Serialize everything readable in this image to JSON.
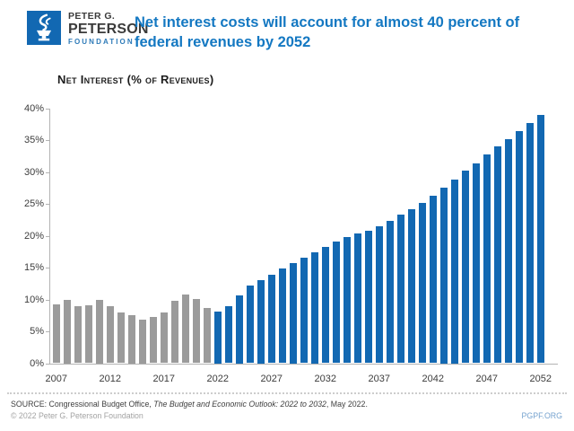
{
  "header": {
    "logo": {
      "line1": "PETER G.",
      "line2": "PETERSON",
      "line3": "FOUNDATION"
    },
    "title": "Net interest costs will account for almost 40 percent of federal revenues by 2052"
  },
  "chart_data": {
    "type": "bar",
    "title": "Net Interest (% of Revenues)",
    "x": [
      2007,
      2008,
      2009,
      2010,
      2011,
      2012,
      2013,
      2014,
      2015,
      2016,
      2017,
      2018,
      2019,
      2020,
      2021,
      2022,
      2023,
      2024,
      2025,
      2026,
      2027,
      2028,
      2029,
      2030,
      2031,
      2032,
      2033,
      2034,
      2035,
      2036,
      2037,
      2038,
      2039,
      2040,
      2041,
      2042,
      2043,
      2044,
      2045,
      2046,
      2047,
      2048,
      2049,
      2050,
      2051,
      2052
    ],
    "values": [
      9.2,
      10.0,
      8.9,
      9.1,
      10.0,
      9.0,
      8.0,
      7.6,
      6.9,
      7.3,
      7.9,
      9.8,
      10.8,
      10.1,
      8.7,
      8.1,
      8.9,
      10.7,
      12.2,
      13.1,
      13.9,
      14.8,
      15.7,
      16.6,
      17.4,
      18.2,
      19.1,
      19.8,
      20.3,
      20.8,
      21.5,
      22.3,
      23.3,
      24.1,
      25.1,
      26.3,
      27.5,
      28.8,
      30.2,
      31.4,
      32.7,
      34.0,
      35.2,
      36.4,
      37.7,
      38.9
    ],
    "historical_through": 2021,
    "ylim": [
      0,
      40
    ],
    "yticks": [
      "0%",
      "5%",
      "10%",
      "15%",
      "20%",
      "25%",
      "30%",
      "35%",
      "40%"
    ],
    "xticks": [
      2007,
      2012,
      2017,
      2022,
      2027,
      2032,
      2037,
      2042,
      2047,
      2052
    ],
    "grid": false,
    "legend": null,
    "colors": {
      "historical_bar": "#9b9b9b",
      "projected_bar": "#1268b2",
      "brand_blue": "#1478c2",
      "axis": "#b3b3b3",
      "link_blue": "#76a3cf"
    }
  },
  "footer": {
    "source_prefix": "SOURCE: Congressional Budget Office, ",
    "source_title_italic": "The Budget and Economic Outlook: 2022 to 2032",
    "source_suffix": ", May 2022.",
    "copyright": "© 2022 Peter G. Peterson Foundation",
    "site_link": "PGPF.ORG"
  }
}
